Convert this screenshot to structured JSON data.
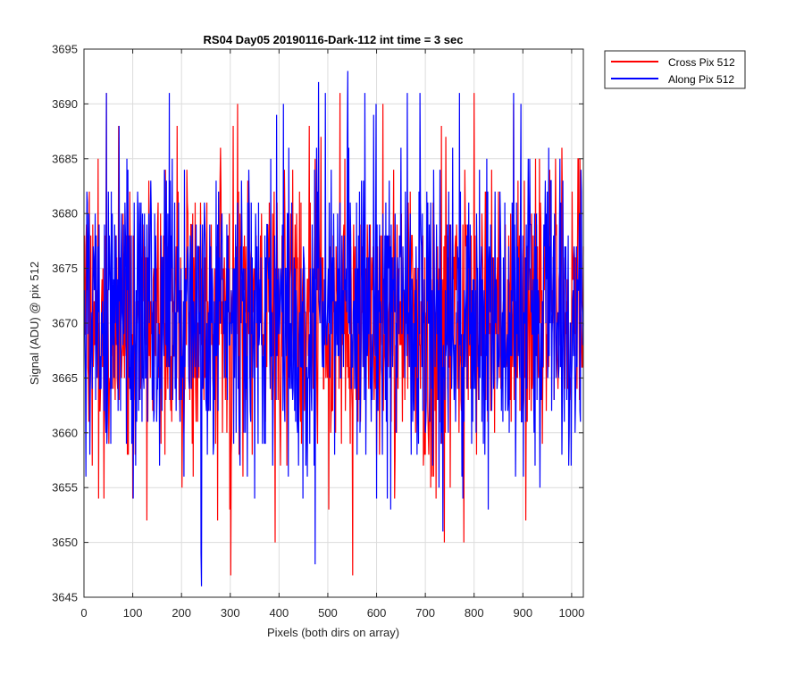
{
  "chart_data": {
    "type": "line",
    "title": "RS04 Day05 20190116-Dark-112 int time = 3 sec",
    "xlabel": "Pixels (both dirs on array)",
    "ylabel": "Signal (ADU) @ pix 512",
    "xlim": [
      0,
      1024
    ],
    "ylim": [
      3645,
      3695
    ],
    "xticks": [
      0,
      100,
      200,
      300,
      400,
      500,
      600,
      700,
      800,
      900,
      1000
    ],
    "yticks": [
      3645,
      3650,
      3655,
      3660,
      3665,
      3670,
      3675,
      3680,
      3685,
      3690,
      3695
    ],
    "grid": true,
    "legend_position": "outside-top-right",
    "colors": {
      "axes": "#262626",
      "grid": "#dcdcdc",
      "cross": "#ff0000",
      "along": "#0000ff"
    },
    "noise_summary": {
      "mean": 3671,
      "typical_range": [
        3658,
        3686
      ]
    },
    "series": [
      {
        "name": "Cross Pix 512",
        "color": "#ff0000",
        "points": 1024,
        "extremes": [
          {
            "x": 40,
            "y": 3654
          },
          {
            "x": 45,
            "y": 3691
          },
          {
            "x": 128,
            "y": 3652
          },
          {
            "x": 300,
            "y": 3647
          },
          {
            "x": 550,
            "y": 3647
          },
          {
            "x": 612,
            "y": 3690
          },
          {
            "x": 738,
            "y": 3650
          },
          {
            "x": 778,
            "y": 3650
          },
          {
            "x": 880,
            "y": 3690
          }
        ]
      },
      {
        "name": "Along Pix 512",
        "color": "#0000ff",
        "points": 1024,
        "extremes": [
          {
            "x": 3,
            "y": 3656
          },
          {
            "x": 45,
            "y": 3691
          },
          {
            "x": 240,
            "y": 3646
          },
          {
            "x": 473,
            "y": 3648
          },
          {
            "x": 480,
            "y": 3692
          },
          {
            "x": 540,
            "y": 3693
          },
          {
            "x": 735,
            "y": 3651
          },
          {
            "x": 895,
            "y": 3690
          }
        ]
      }
    ]
  }
}
